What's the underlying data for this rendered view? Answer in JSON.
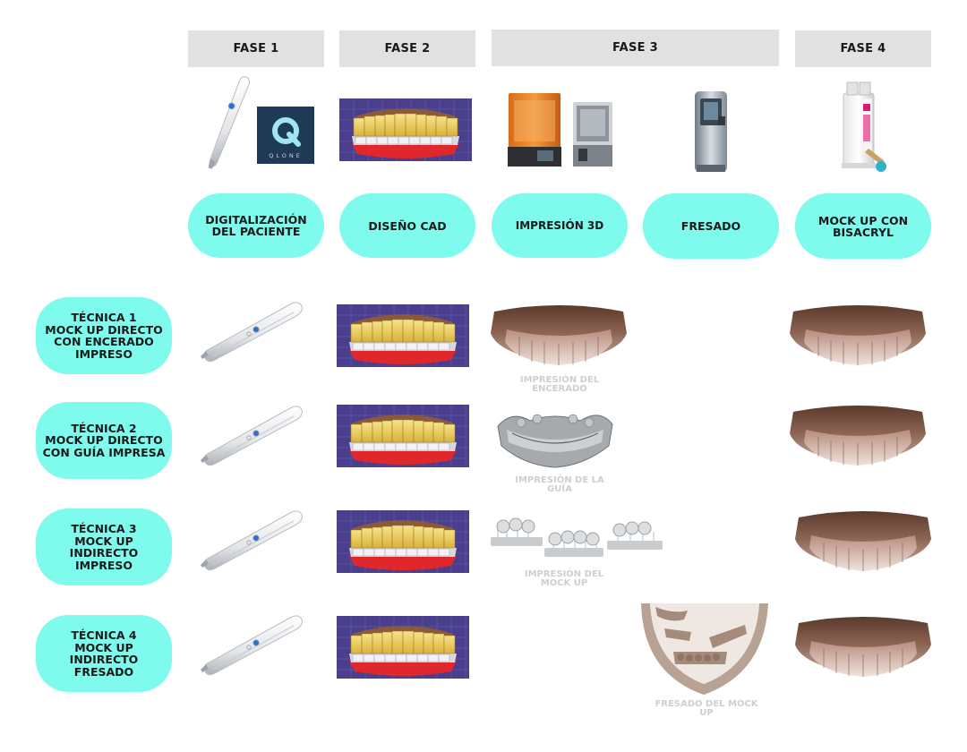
{
  "phases": {
    "fase1": "FASE 1",
    "fase2": "FASE 2",
    "fase3": "FASE 3",
    "fase4": "FASE 4"
  },
  "steps": {
    "digitalizacion": "DIGITALIZACIÓN\nDEL PACIENTE",
    "diseno": "DISEÑO CAD",
    "impresion": "IMPRESIÓN 3D",
    "fresado": "FRESADO",
    "mockup": "MOCK UP CON\nBISACRYL"
  },
  "qlone": {
    "logo_letter": "Q",
    "logo_text": "QLONE"
  },
  "techniques": [
    {
      "label": "TÉCNICA 1\nMOCK UP DIRECTO\nCON ENCERADO\nIMPRESO",
      "caption": "IMPRESIÓN DEL\nENCERADO"
    },
    {
      "label": "TÉCNICA 2\nMOCK UP DIRECTO\nCON GUÍA IMPRESA",
      "caption": "IMPRESIÓN DE LA\nGUÍA"
    },
    {
      "label": "TÉCNICA 3\nMOCK UP\nINDIRECTO\nIMPRESO",
      "caption": "IMPRESIÓN DEL\nMOCK UP"
    },
    {
      "label": "TÉCNICA 4\nMOCK UP\nINDIRECTO\nFRESADO",
      "caption": "FRESADO DEL MOCK\nUP"
    }
  ],
  "colors": {
    "pill": "#7ffbee",
    "phase_bg": "#e1e1e1",
    "caption": "#cfcfcf",
    "cad_bg": "#4a3f8c",
    "teeth_yellow": "#e8c84a",
    "gum_red": "#e0282c"
  },
  "icons": [
    "intraoral-scanner-icon",
    "qlone-logo",
    "cad-design-image",
    "3d-printer-icon",
    "milling-machine-icon",
    "bisacryl-cartridge-icon",
    "mockup-arch-image",
    "printed-guide-image",
    "printed-models-image",
    "milled-disc-image"
  ]
}
